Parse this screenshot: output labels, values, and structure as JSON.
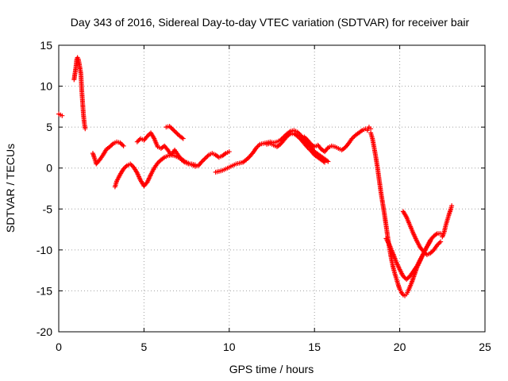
{
  "chart_data": {
    "type": "scatter",
    "title": "Day 343 of 2016, Sidereal Day-to-day VTEC variation (SDTVAR) for receiver bair",
    "xlabel": "GPS time / hours",
    "ylabel": "SDTVAR / TECUs",
    "xlim": [
      0,
      25
    ],
    "ylim": [
      -20,
      15
    ],
    "x_ticks": [
      "0",
      "5",
      "10",
      "15",
      "20",
      "25"
    ],
    "y_ticks": [
      "15",
      "10",
      "5",
      "0",
      "-5",
      "-10",
      "-15",
      "-20"
    ],
    "grid": true,
    "point_color": "#ff0000",
    "series": [
      {
        "segments": [
          [
            [
              0.0,
              6.6
            ],
            [
              0.1,
              6.5
            ],
            [
              0.2,
              6.4
            ]
          ],
          [
            [
              0.9,
              10.8
            ],
            [
              1.0,
              12.2
            ],
            [
              1.05,
              13.2
            ],
            [
              1.1,
              13.5
            ],
            [
              1.15,
              13.3
            ],
            [
              1.2,
              12.8
            ],
            [
              1.3,
              11.5
            ],
            [
              1.35,
              9.5
            ],
            [
              1.4,
              8.0
            ],
            [
              1.45,
              6.5
            ],
            [
              1.5,
              5.5
            ],
            [
              1.55,
              4.8
            ]
          ],
          [
            [
              2.0,
              1.8
            ],
            [
              2.1,
              1.2
            ],
            [
              2.2,
              0.5
            ],
            [
              2.4,
              1.0
            ],
            [
              2.6,
              1.6
            ],
            [
              2.8,
              2.3
            ],
            [
              3.0,
              2.6
            ],
            [
              3.2,
              3.0
            ],
            [
              3.4,
              3.2
            ],
            [
              3.6,
              3.1
            ],
            [
              3.8,
              2.7
            ]
          ],
          [
            [
              3.3,
              -2.3
            ],
            [
              3.4,
              -1.6
            ],
            [
              3.6,
              -0.8
            ],
            [
              3.8,
              -0.1
            ],
            [
              4.0,
              0.3
            ],
            [
              4.2,
              0.5
            ],
            [
              4.4,
              0.1
            ],
            [
              4.6,
              -0.6
            ],
            [
              4.8,
              -1.5
            ],
            [
              5.0,
              -2.2
            ],
            [
              5.2,
              -1.7
            ],
            [
              5.4,
              -0.8
            ],
            [
              5.6,
              0.0
            ],
            [
              5.8,
              0.6
            ],
            [
              6.0,
              1.0
            ],
            [
              6.2,
              1.3
            ],
            [
              6.4,
              1.5
            ],
            [
              6.6,
              1.6
            ],
            [
              6.8,
              1.5
            ],
            [
              7.0,
              1.3
            ],
            [
              7.2,
              1.1
            ],
            [
              7.4,
              0.8
            ],
            [
              7.6,
              0.6
            ],
            [
              7.8,
              0.4
            ],
            [
              8.0,
              0.2
            ],
            [
              8.2,
              0.3
            ],
            [
              8.4,
              0.8
            ],
            [
              8.6,
              1.2
            ],
            [
              8.8,
              1.6
            ],
            [
              9.0,
              1.8
            ],
            [
              9.2,
              1.6
            ],
            [
              9.4,
              1.3
            ],
            [
              9.6,
              1.5
            ],
            [
              9.8,
              1.8
            ],
            [
              10.0,
              2.0
            ]
          ],
          [
            [
              4.6,
              3.2
            ],
            [
              4.8,
              3.6
            ],
            [
              5.0,
              3.4
            ],
            [
              5.2,
              3.9
            ],
            [
              5.4,
              4.3
            ],
            [
              5.6,
              3.6
            ],
            [
              5.8,
              2.6
            ],
            [
              6.0,
              2.4
            ],
            [
              6.2,
              2.7
            ],
            [
              6.4,
              2.2
            ],
            [
              6.6,
              1.6
            ],
            [
              6.8,
              2.2
            ],
            [
              7.0,
              1.6
            ],
            [
              7.2,
              1.0
            ],
            [
              7.4,
              0.7
            ],
            [
              7.6,
              0.5
            ],
            [
              7.8,
              0.5
            ],
            [
              8.0,
              0.4
            ]
          ],
          [
            [
              6.3,
              5.0
            ],
            [
              6.5,
              5.1
            ],
            [
              6.7,
              4.7
            ],
            [
              6.9,
              4.3
            ],
            [
              7.1,
              3.9
            ],
            [
              7.3,
              3.6
            ]
          ],
          [
            [
              9.2,
              -0.5
            ],
            [
              9.4,
              -0.4
            ],
            [
              9.6,
              -0.3
            ],
            [
              9.8,
              -0.1
            ],
            [
              10.0,
              0.1
            ],
            [
              10.2,
              0.3
            ],
            [
              10.4,
              0.5
            ],
            [
              10.6,
              0.6
            ],
            [
              10.8,
              0.7
            ],
            [
              11.0,
              1.0
            ],
            [
              11.2,
              1.4
            ],
            [
              11.4,
              1.9
            ],
            [
              11.6,
              2.5
            ],
            [
              11.8,
              2.9
            ],
            [
              12.0,
              3.0
            ],
            [
              12.2,
              3.1
            ],
            [
              12.4,
              3.2
            ],
            [
              12.6,
              3.1
            ],
            [
              12.8,
              3.2
            ],
            [
              13.0,
              3.4
            ],
            [
              13.2,
              3.8
            ],
            [
              13.4,
              4.2
            ],
            [
              13.6,
              4.5
            ],
            [
              13.8,
              4.6
            ],
            [
              14.0,
              4.4
            ],
            [
              14.2,
              4.0
            ],
            [
              14.4,
              3.5
            ],
            [
              14.6,
              3.0
            ],
            [
              14.8,
              2.5
            ],
            [
              15.0,
              2.0
            ],
            [
              15.2,
              1.7
            ],
            [
              15.4,
              1.4
            ],
            [
              15.6,
              1.1
            ],
            [
              15.8,
              0.8
            ]
          ],
          [
            [
              12.2,
              2.9
            ],
            [
              12.4,
              3.0
            ],
            [
              12.6,
              2.8
            ],
            [
              12.8,
              2.6
            ],
            [
              13.0,
              2.9
            ],
            [
              13.2,
              3.4
            ],
            [
              13.4,
              3.9
            ],
            [
              13.6,
              4.2
            ],
            [
              13.8,
              4.2
            ],
            [
              14.0,
              3.9
            ],
            [
              14.2,
              3.5
            ],
            [
              14.4,
              3.0
            ],
            [
              14.6,
              2.5
            ],
            [
              14.8,
              2.1
            ],
            [
              15.0,
              1.6
            ],
            [
              15.2,
              1.3
            ],
            [
              15.4,
              1.0
            ],
            [
              15.6,
              0.7
            ]
          ],
          [
            [
              14.4,
              3.8
            ],
            [
              14.6,
              3.4
            ],
            [
              14.8,
              2.9
            ],
            [
              15.0,
              2.6
            ],
            [
              15.2,
              2.8
            ],
            [
              15.4,
              2.3
            ],
            [
              15.6,
              2.0
            ],
            [
              15.8,
              2.5
            ],
            [
              16.0,
              2.7
            ],
            [
              16.2,
              2.6
            ],
            [
              16.4,
              2.4
            ],
            [
              16.6,
              2.2
            ],
            [
              16.8,
              2.5
            ],
            [
              17.0,
              3.0
            ],
            [
              17.2,
              3.6
            ],
            [
              17.4,
              4.0
            ],
            [
              17.6,
              4.3
            ],
            [
              17.8,
              4.6
            ],
            [
              18.0,
              4.8
            ],
            [
              18.1,
              4.6
            ],
            [
              18.2,
              5.0
            ],
            [
              18.3,
              4.8
            ]
          ],
          [
            [
              18.3,
              4.3
            ],
            [
              18.4,
              3.6
            ],
            [
              18.5,
              2.5
            ],
            [
              18.6,
              1.3
            ],
            [
              18.7,
              0.0
            ],
            [
              18.8,
              -1.5
            ],
            [
              18.9,
              -3.0
            ],
            [
              19.0,
              -4.3
            ],
            [
              19.1,
              -5.6
            ],
            [
              19.2,
              -7.0
            ],
            [
              19.3,
              -8.5
            ],
            [
              19.4,
              -9.8
            ],
            [
              19.5,
              -11.0
            ],
            [
              19.6,
              -12.0
            ],
            [
              19.7,
              -12.8
            ],
            [
              19.8,
              -13.5
            ],
            [
              19.9,
              -14.2
            ],
            [
              20.0,
              -14.8
            ],
            [
              20.1,
              -15.2
            ],
            [
              20.2,
              -15.5
            ],
            [
              20.3,
              -15.6
            ],
            [
              20.4,
              -15.4
            ],
            [
              20.5,
              -15.0
            ],
            [
              20.6,
              -14.5
            ],
            [
              20.7,
              -14.0
            ],
            [
              20.8,
              -13.4
            ],
            [
              20.9,
              -12.8
            ],
            [
              21.0,
              -12.2
            ],
            [
              21.2,
              -11.3
            ],
            [
              21.4,
              -10.4
            ],
            [
              21.6,
              -9.6
            ],
            [
              21.8,
              -8.8
            ],
            [
              22.0,
              -8.3
            ],
            [
              22.2,
              -8.0
            ],
            [
              22.4,
              -8.0
            ]
          ],
          [
            [
              19.2,
              -8.6
            ],
            [
              19.4,
              -9.4
            ],
            [
              19.6,
              -10.4
            ],
            [
              19.8,
              -11.5
            ],
            [
              20.0,
              -12.4
            ],
            [
              20.2,
              -13.2
            ],
            [
              20.4,
              -13.6
            ],
            [
              20.6,
              -13.2
            ],
            [
              20.8,
              -12.6
            ],
            [
              21.0,
              -12.0
            ],
            [
              21.2,
              -11.2
            ],
            [
              21.4,
              -10.4
            ],
            [
              21.6,
              -9.6
            ],
            [
              21.8,
              -8.9
            ]
          ],
          [
            [
              20.2,
              -5.3
            ],
            [
              20.4,
              -6.0
            ],
            [
              20.6,
              -7.0
            ],
            [
              20.8,
              -8.0
            ],
            [
              21.0,
              -8.9
            ],
            [
              21.2,
              -9.7
            ],
            [
              21.4,
              -10.2
            ],
            [
              21.6,
              -10.6
            ],
            [
              21.8,
              -10.4
            ],
            [
              22.0,
              -10.0
            ],
            [
              22.2,
              -9.4
            ],
            [
              22.4,
              -9.0
            ]
          ],
          [
            [
              22.5,
              -8.4
            ],
            [
              22.6,
              -7.9
            ],
            [
              22.7,
              -7.0
            ],
            [
              22.8,
              -6.3
            ],
            [
              22.9,
              -5.6
            ],
            [
              23.0,
              -5.0
            ],
            [
              23.05,
              -4.6
            ]
          ]
        ]
      }
    ]
  }
}
